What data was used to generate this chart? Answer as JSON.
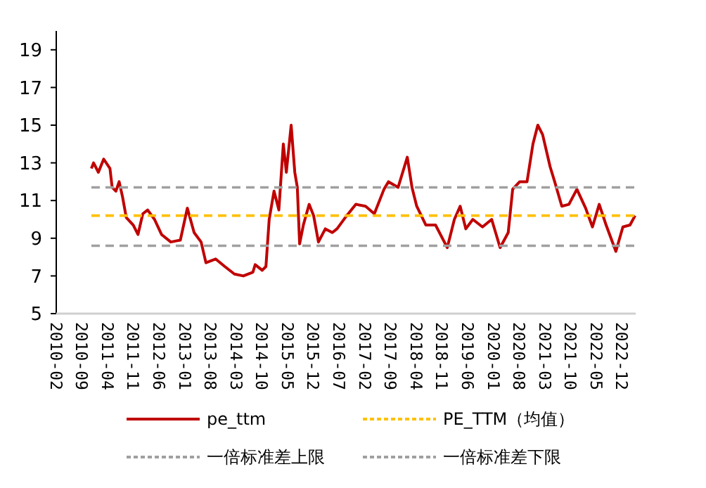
{
  "chart_data": {
    "type": "line",
    "xlim": [
      "2010-02-01",
      "2023-03-25"
    ],
    "ylim": [
      5,
      20
    ],
    "yticks": [
      5,
      7,
      9,
      11,
      13,
      15,
      17,
      19
    ],
    "xticks": [
      "2010-02",
      "2010-09",
      "2011-04",
      "2011-11",
      "2012-06",
      "2013-01",
      "2013-08",
      "2014-03",
      "2014-10",
      "2015-05",
      "2015-12",
      "2016-07",
      "2017-02",
      "2017-09",
      "2018-04",
      "2018-11",
      "2019-06",
      "2020-01",
      "2020-08",
      "2021-03",
      "2021-10",
      "2022-05",
      "2022-12"
    ],
    "grid": false,
    "legend": "bottom",
    "marker": "none",
    "series": [
      {
        "name": "pe_ttm",
        "color": "#c00000",
        "line_style": "solid",
        "x": [
          "2010-11-19",
          "2010-12-07",
          "2011-01-16",
          "2011-03-01",
          "2011-04-22",
          "2011-05-10",
          "2011-06-10",
          "2011-07-07",
          "2011-08-04",
          "2011-09-04",
          "2011-11-01",
          "2011-12-10",
          "2012-01-19",
          "2012-02-28",
          "2012-04-25",
          "2012-06-22",
          "2012-09-07",
          "2012-11-25",
          "2013-01-22",
          "2013-03-19",
          "2013-05-16",
          "2013-06-25",
          "2013-09-13",
          "2013-11-28",
          "2014-02-16",
          "2014-05-01",
          "2014-07-19",
          "2014-08-07",
          "2014-10-04",
          "2014-11-04",
          "2014-12-01",
          "2015-01-10",
          "2015-02-19",
          "2015-03-28",
          "2015-04-22",
          "2015-06-01",
          "2015-07-01",
          "2015-07-22",
          "2015-08-10",
          "2015-09-10",
          "2015-10-28",
          "2015-12-04",
          "2016-01-13",
          "2016-03-10",
          "2016-05-07",
          "2016-06-15",
          "2016-09-03",
          "2016-11-18",
          "2017-02-06",
          "2017-04-20",
          "2017-07-09",
          "2017-08-15",
          "2017-11-03",
          "2018-01-18",
          "2018-02-26",
          "2018-04-06",
          "2018-06-21",
          "2018-09-09",
          "2018-12-15",
          "2019-02-12",
          "2019-04-01",
          "2019-05-18",
          "2019-07-15",
          "2019-10-03",
          "2019-12-18",
          "2020-02-26",
          "2020-05-03",
          "2020-06-09",
          "2020-08-06",
          "2020-10-06",
          "2020-11-24",
          "2021-01-03",
          "2021-02-12",
          "2021-04-15",
          "2021-05-23",
          "2021-07-21",
          "2021-09-18",
          "2021-11-23",
          "2022-02-03",
          "2022-04-01",
          "2022-05-27",
          "2022-07-23",
          "2022-10-12",
          "2022-12-09",
          "2023-02-06",
          "2023-03-20"
        ],
        "values": [
          12.7,
          13.0,
          12.5,
          13.2,
          12.7,
          11.7,
          11.5,
          12.0,
          11.2,
          10.1,
          9.7,
          9.2,
          10.3,
          10.5,
          10.0,
          9.2,
          8.8,
          8.9,
          10.6,
          9.3,
          8.8,
          7.7,
          7.9,
          7.5,
          7.1,
          7.0,
          7.2,
          7.6,
          7.3,
          7.5,
          10.0,
          11.5,
          10.5,
          14.0,
          12.5,
          15.0,
          12.5,
          11.7,
          8.7,
          9.7,
          10.8,
          10.2,
          8.8,
          9.5,
          9.3,
          9.5,
          10.2,
          10.8,
          10.7,
          10.3,
          11.6,
          12.0,
          11.7,
          13.3,
          11.7,
          10.7,
          9.7,
          9.7,
          8.5,
          10.0,
          10.7,
          9.5,
          10.0,
          9.6,
          10.0,
          8.5,
          9.3,
          11.6,
          12.0,
          12.0,
          14.0,
          15.0,
          14.5,
          12.8,
          12.0,
          10.7,
          10.8,
          11.6,
          10.6,
          9.6,
          10.8,
          9.7,
          8.3,
          9.6,
          9.7,
          10.2
        ]
      },
      {
        "name": "PE_TTM（均值）",
        "color": "#ffc000",
        "line_style": "dashed",
        "x": [
          "2010-11-19",
          "2023-03-20"
        ],
        "values": [
          10.2,
          10.2
        ]
      },
      {
        "name": "一倍标准差上限",
        "color": "#a0a0a0",
        "line_style": "dashed",
        "x": [
          "2010-11-19",
          "2023-03-20"
        ],
        "values": [
          11.7,
          11.7
        ]
      },
      {
        "name": "一倍标准差下限",
        "color": "#a0a0a0",
        "line_style": "dashed",
        "x": [
          "2010-11-19",
          "2023-03-20"
        ],
        "values": [
          8.6,
          8.6
        ]
      }
    ]
  }
}
